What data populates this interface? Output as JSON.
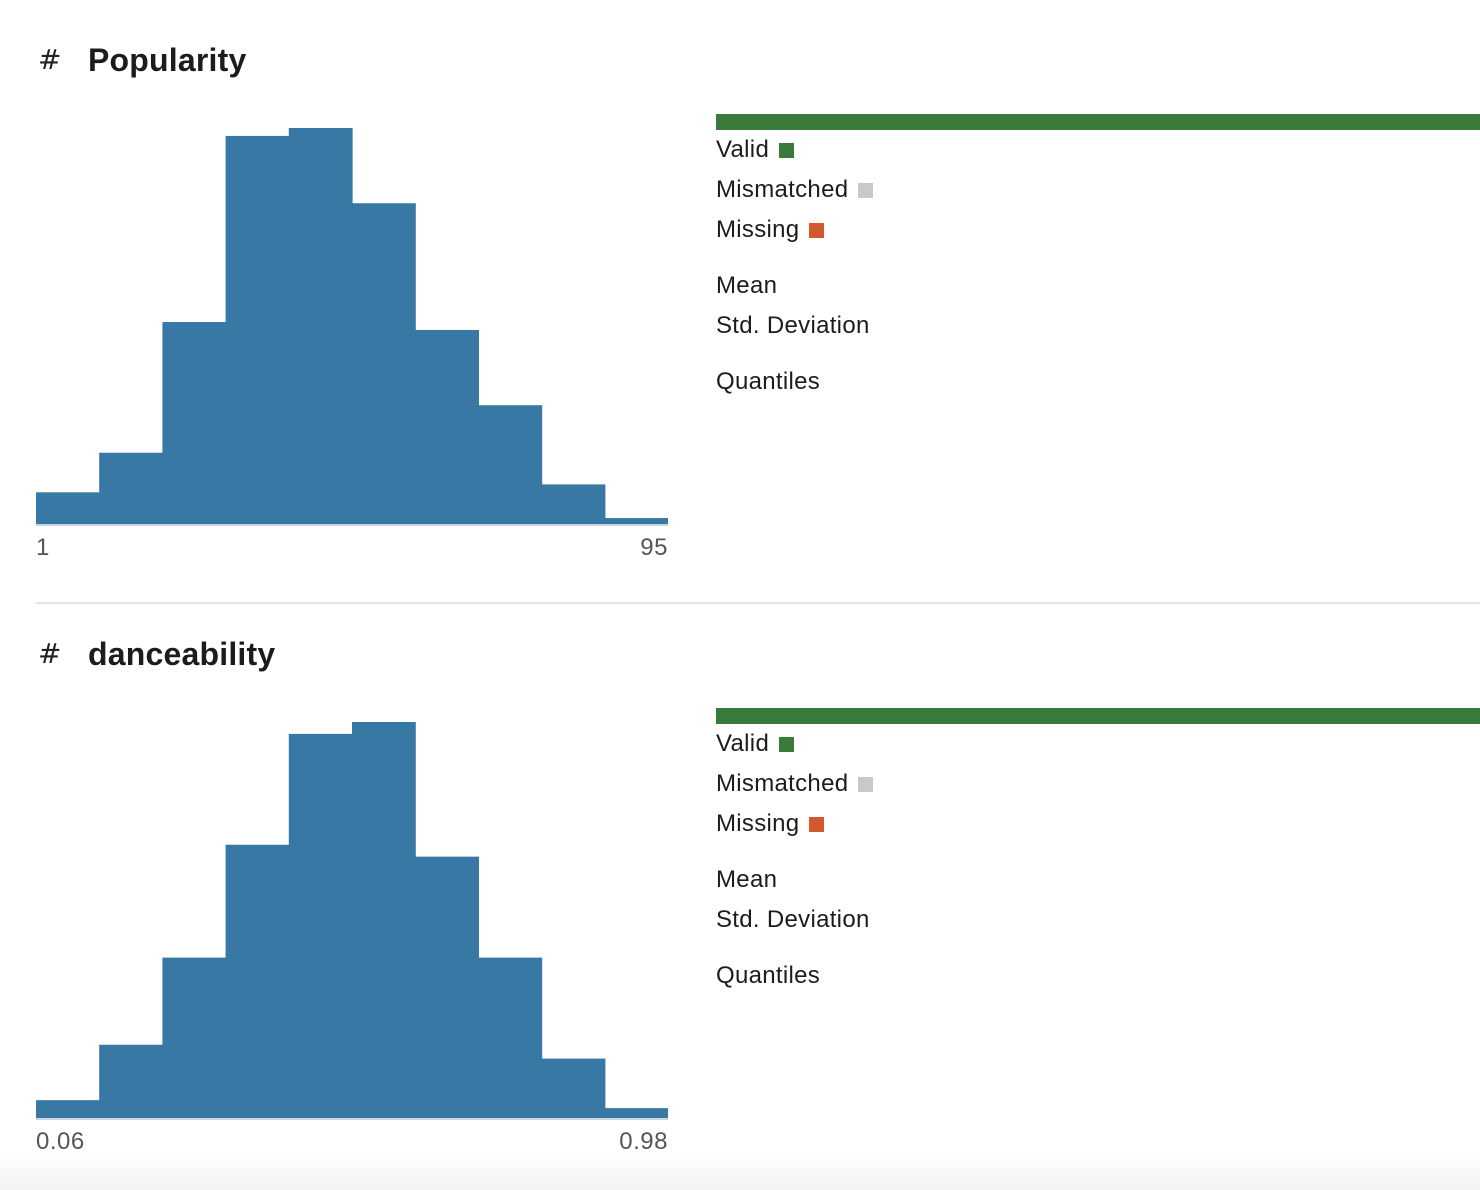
{
  "columns": [
    {
      "type_icon": "#",
      "icon_name": "hash-icon",
      "name": "Popularity",
      "range_min": "1",
      "range_max": "95",
      "legend": {
        "valid": "Valid",
        "mismatched": "Mismatched",
        "missing": "Missing"
      },
      "stats": {
        "mean": "Mean",
        "std": "Std. Deviation",
        "quantiles": "Quantiles"
      },
      "validity": {
        "valid_fraction": 1.0,
        "mismatched_fraction": 0.0,
        "missing_fraction": 0.0
      }
    },
    {
      "type_icon": "#",
      "icon_name": "hash-icon",
      "name": "danceability",
      "range_min": "0.06",
      "range_max": "0.98",
      "legend": {
        "valid": "Valid",
        "mismatched": "Mismatched",
        "missing": "Missing"
      },
      "stats": {
        "mean": "Mean",
        "std": "Std. Deviation",
        "quantiles": "Quantiles"
      },
      "validity": {
        "valid_fraction": 1.0,
        "mismatched_fraction": 0.0,
        "missing_fraction": 0.0
      }
    }
  ],
  "colors": {
    "bar": "#3778a4",
    "valid": "#3a7a3a",
    "mismatched": "#c8c9cc",
    "missing": "#d4582e",
    "baseline": "#c9d6df"
  },
  "chart_data": [
    {
      "type": "bar",
      "title": "Popularity",
      "x_range": [
        1,
        95
      ],
      "bins": 10,
      "values": [
        8,
        18,
        51,
        98,
        100,
        81,
        49,
        30,
        10,
        1.5
      ],
      "value_scale": "relative to tallest bin = 100"
    },
    {
      "type": "bar",
      "title": "danceability",
      "x_range": [
        0.06,
        0.98
      ],
      "bins": 10,
      "values": [
        4.5,
        18.5,
        40.5,
        69,
        97,
        100,
        66,
        40.5,
        15,
        2.5
      ],
      "value_scale": "relative to tallest bin = 100"
    }
  ]
}
